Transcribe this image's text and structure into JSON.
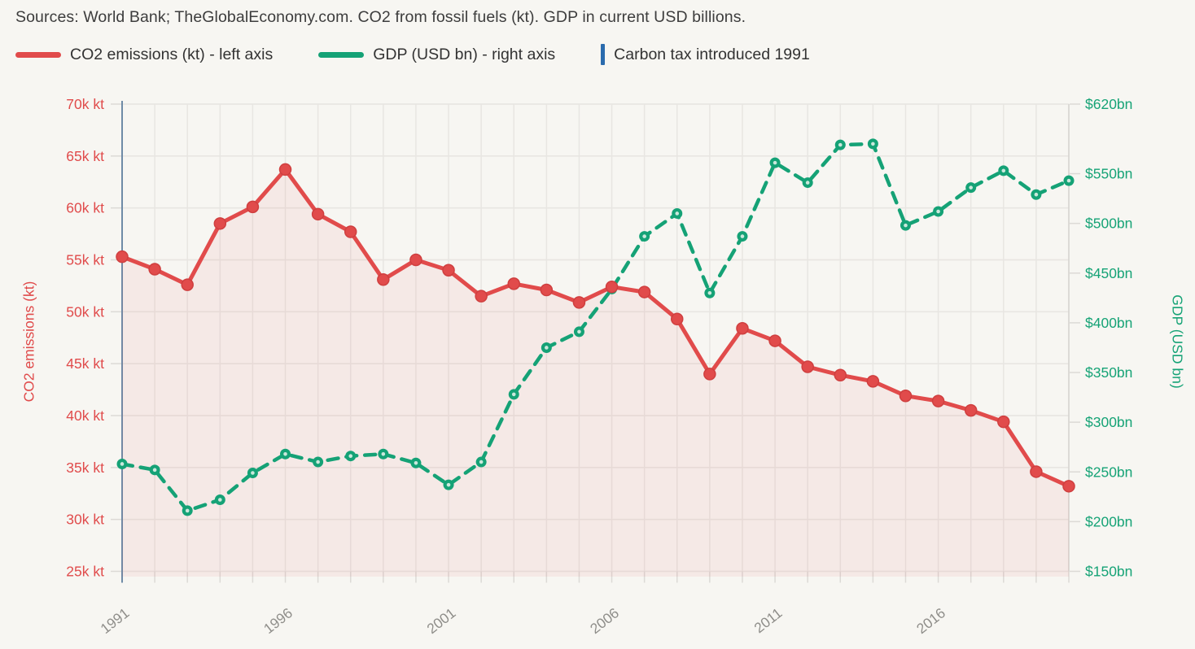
{
  "header": {
    "title": "Sources: World Bank; TheGlobalEconomy.com. CO2 from fossil fuels (kt). GDP in current USD billions."
  },
  "legend": [
    {
      "label": "CO2 emissions (kt) - left axis",
      "color": "#e14b4b",
      "swatch": "line"
    },
    {
      "label": "GDP (USD bn) - right axis",
      "color": "#15a276",
      "swatch": "line"
    },
    {
      "label": "Carbon tax introduced 1991",
      "color": "#2a6bad",
      "swatch": "vline"
    }
  ],
  "colors": {
    "background": "#f7f6f2",
    "co2_line": "#e14b4b",
    "co2_marker_stroke": "#cf3f3f",
    "co2_area_fill": "rgba(225,75,75,0.075)",
    "gdp_line": "#15a276",
    "gdp_marker_inner": "#dff0e8",
    "carbon_tax_line": "#2a6bad",
    "grid": "#e8e6e2",
    "axis_line": "#a8a7a3",
    "right_axis_line": "#d5d4d0",
    "tick_stub": "#dcdad6",
    "x_label": "#8f8e8a",
    "title_text": "#3d3d3d"
  },
  "chart_data": {
    "type": "line",
    "title": "Sources: World Bank; TheGlobalEconomy.com. CO2 from fossil fuels (kt). GDP in current USD billions.",
    "x": [
      1991,
      1992,
      1993,
      1994,
      1995,
      1996,
      1997,
      1998,
      1999,
      2000,
      2001,
      2002,
      2003,
      2004,
      2005,
      2006,
      2007,
      2008,
      2009,
      2010,
      2011,
      2012,
      2013,
      2014,
      2015,
      2016,
      2017,
      2018,
      2019,
      2020
    ],
    "series": [
      {
        "name": "CO2 emissions (kt) - left axis",
        "axis": "left",
        "style": "solid",
        "area": true,
        "color": "#e14b4b",
        "values": [
          55300,
          54100,
          52600,
          58500,
          60100,
          63700,
          59400,
          57700,
          53100,
          55000,
          54000,
          51500,
          52700,
          52100,
          50900,
          52400,
          51900,
          49300,
          44000,
          48400,
          47200,
          44700,
          43900,
          43300,
          41900,
          41400,
          40500,
          39400,
          34600,
          33200
        ]
      },
      {
        "name": "GDP (USD bn) - right axis",
        "axis": "right",
        "style": "dashed",
        "area": false,
        "color": "#15a276",
        "values": [
          258,
          252,
          211,
          222,
          249,
          268,
          260,
          266,
          268,
          259,
          237,
          260,
          328,
          375,
          391,
          434,
          487,
          510,
          430,
          487,
          561,
          541,
          579,
          580,
          498,
          512,
          536,
          553,
          529,
          543
        ]
      }
    ],
    "annotations": [
      {
        "type": "vline",
        "x": 1991,
        "label": "Carbon tax introduced 1991",
        "color": "#2a6bad"
      }
    ],
    "left_axis": {
      "title": "CO2 emissions (kt)",
      "min": 25000,
      "max": 70000,
      "tick_values": [
        70000,
        65000,
        60000,
        55000,
        50000,
        45000,
        40000,
        35000,
        30000,
        25000
      ],
      "tick_labels": [
        "70k kt",
        "65k kt",
        "60k kt",
        "55k kt",
        "50k kt",
        "45k kt",
        "40k kt",
        "35k kt",
        "30k kt",
        "25k kt"
      ],
      "color": "#e04b4b"
    },
    "right_axis": {
      "title": "GDP (USD bn)",
      "min": 150,
      "max": 620,
      "tick_values": [
        620,
        550,
        500,
        450,
        400,
        350,
        300,
        250,
        200,
        150
      ],
      "tick_labels": [
        "$620bn",
        "$550bn",
        "$500bn",
        "$450bn",
        "$400bn",
        "$350bn",
        "$300bn",
        "$250bn",
        "$200bn",
        "$150bn"
      ],
      "color": "#16a376"
    },
    "x_axis": {
      "range": [
        1991,
        2020
      ],
      "tick_labels": [
        "1991",
        "1996",
        "2001",
        "2006",
        "2011",
        "2016"
      ],
      "tick_values": [
        1991,
        1996,
        2001,
        2006,
        2011,
        2016
      ],
      "minor_ticks": "every year"
    },
    "grid": true,
    "legend_position": "top"
  }
}
